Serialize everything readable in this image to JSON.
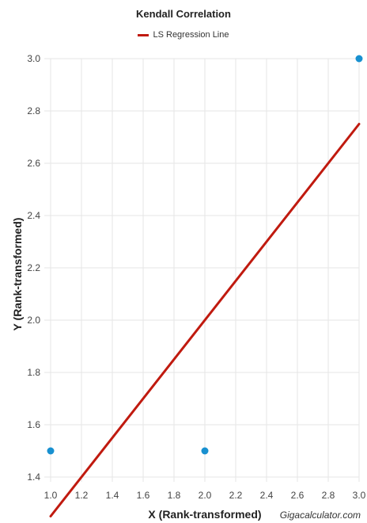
{
  "chart_data": {
    "type": "scatter",
    "title": "Kendall Correlation",
    "xlabel": "X (Rank-transformed)",
    "ylabel": "Y (Rank-transformed)",
    "xlim": [
      1.0,
      3.0
    ],
    "ylim": [
      1.4,
      3.0
    ],
    "x_ticks": [
      "1.0",
      "1.2",
      "1.4",
      "1.6",
      "1.8",
      "2.0",
      "2.2",
      "2.4",
      "2.6",
      "2.8",
      "3.0"
    ],
    "y_ticks": [
      "1.4",
      "1.6",
      "1.8",
      "2.0",
      "2.2",
      "2.4",
      "2.6",
      "2.8",
      "3.0"
    ],
    "grid": true,
    "legend_position": "top-center",
    "series": [
      {
        "name": "",
        "type": "scatter",
        "color": "#1890d0",
        "points": [
          {
            "x": 1.0,
            "y": 1.5
          },
          {
            "x": 2.0,
            "y": 1.5
          },
          {
            "x": 3.0,
            "y": 3.0
          }
        ]
      },
      {
        "name": "LS Regression Line",
        "type": "line",
        "color": "#c01a0f",
        "points": [
          {
            "x": 1.0,
            "y": 1.25
          },
          {
            "x": 3.0,
            "y": 2.75
          }
        ]
      }
    ],
    "credit": "Gigacalculator.com"
  }
}
